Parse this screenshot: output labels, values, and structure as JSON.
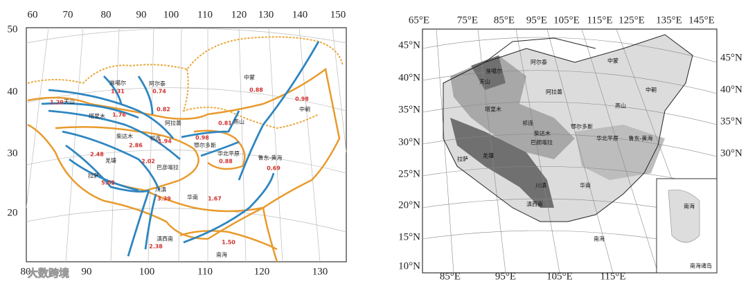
{
  "left_map": {
    "lon_top": [
      60,
      70,
      80,
      90,
      100,
      110,
      120,
      130,
      140,
      150
    ],
    "lat_left": [
      50,
      40,
      30,
      20
    ],
    "lon_bottom": [
      80,
      90,
      100,
      110,
      120,
      130
    ],
    "regions": [
      {
        "name": "准噶尔",
        "rate": "1.31"
      },
      {
        "name": "阿尔泰",
        "rate": "0.74"
      },
      {
        "name": "天山",
        "rate": "1.29"
      },
      {
        "name": "塔里木",
        "rate": "1.76"
      },
      {
        "name": "阿拉善",
        "rate": "0.82"
      },
      {
        "name": "中蒙",
        "rate": "0.88"
      },
      {
        "name": "中朝",
        "rate": "0.98"
      },
      {
        "name": "燕山",
        "rate": "0.81"
      },
      {
        "name": "鄂尔多斯",
        "rate": "0.98"
      },
      {
        "name": "柴达木",
        "rate": "2.86"
      },
      {
        "name": "祁连",
        "rate": "1.94"
      },
      {
        "name": "华北平原",
        "rate": "0.88"
      },
      {
        "name": "鲁东-黄海",
        "rate": "0.69"
      },
      {
        "name": "羌塘",
        "rate": "2.48"
      },
      {
        "name": "巴彦喀拉",
        "rate": "2.02"
      },
      {
        "name": "拉萨",
        "rate": "5.02"
      },
      {
        "name": "川滇",
        "rate": "3.39"
      },
      {
        "name": "华南",
        "rate": "1.67"
      },
      {
        "name": "滇西南",
        "rate": "2.38"
      },
      {
        "name": "南海",
        "rate": "1.50"
      }
    ]
  },
  "right_map": {
    "lon_top": [
      "65°E",
      "75°E",
      "85°E",
      "95°E",
      "105°E",
      "115°E",
      "125°E",
      "135°E",
      "145°E"
    ],
    "lat_left": [
      "45°N",
      "40°N",
      "35°N",
      "30°N",
      "25°N",
      "20°N",
      "15°N",
      "10°N"
    ],
    "lat_right": [
      "45°N",
      "40°N",
      "35°N",
      "30°N"
    ],
    "lon_bottom": [
      "85°E",
      "95°E",
      "105°E",
      "115°E"
    ],
    "regions": [
      "准噶尔",
      "阿尔泰",
      "中蒙",
      "天山",
      "阿拉善",
      "中朝",
      "塔里木",
      "燕山",
      "祁连",
      "柴达木",
      "鄂尔多斯",
      "巴颜喀拉",
      "华北平原",
      "鲁东-黄海",
      "拉萨",
      "羌塘",
      "川滇",
      "华南",
      "滇西南",
      "南海"
    ],
    "inset_label": "南海",
    "inset_caption": "南海诸岛"
  },
  "watermark": "大数跨境"
}
